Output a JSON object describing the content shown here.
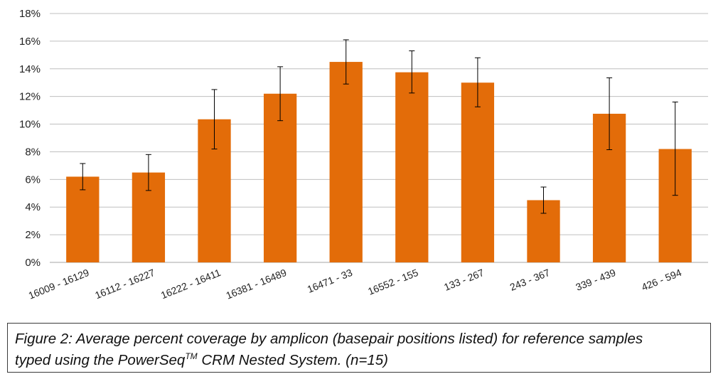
{
  "chart_data": {
    "type": "bar",
    "categories": [
      "16009 - 16129",
      "16112 - 16227",
      "16222 - 16411",
      "16381 - 16489",
      "16471 - 33",
      "16552 - 155",
      "133 - 267",
      "243 - 367",
      "339 - 439",
      "426 - 594"
    ],
    "values": [
      6.2,
      6.5,
      10.35,
      12.2,
      14.5,
      13.75,
      13.0,
      4.5,
      10.75,
      8.2
    ],
    "error_low": [
      5.25,
      5.2,
      8.2,
      10.25,
      12.9,
      12.25,
      11.25,
      3.55,
      8.15,
      4.85
    ],
    "error_high": [
      7.15,
      7.8,
      12.5,
      14.15,
      16.1,
      15.3,
      14.8,
      5.45,
      13.35,
      11.6
    ],
    "ylim": [
      0,
      18
    ],
    "yticks": [
      "0%",
      "2%",
      "4%",
      "6%",
      "8%",
      "10%",
      "12%",
      "14%",
      "16%",
      "18%"
    ],
    "bar_color": "#e36c09",
    "grid_color": "#bfbfbf",
    "grid": true,
    "legend": "none"
  },
  "caption": {
    "line1": "Figure 2: Average percent coverage by amplicon (basepair positions listed) for reference samples",
    "line2_pre": "typed using the PowerSeq",
    "line2_sup": "TM",
    "line2_post": " CRM Nested System. (n=15)"
  }
}
